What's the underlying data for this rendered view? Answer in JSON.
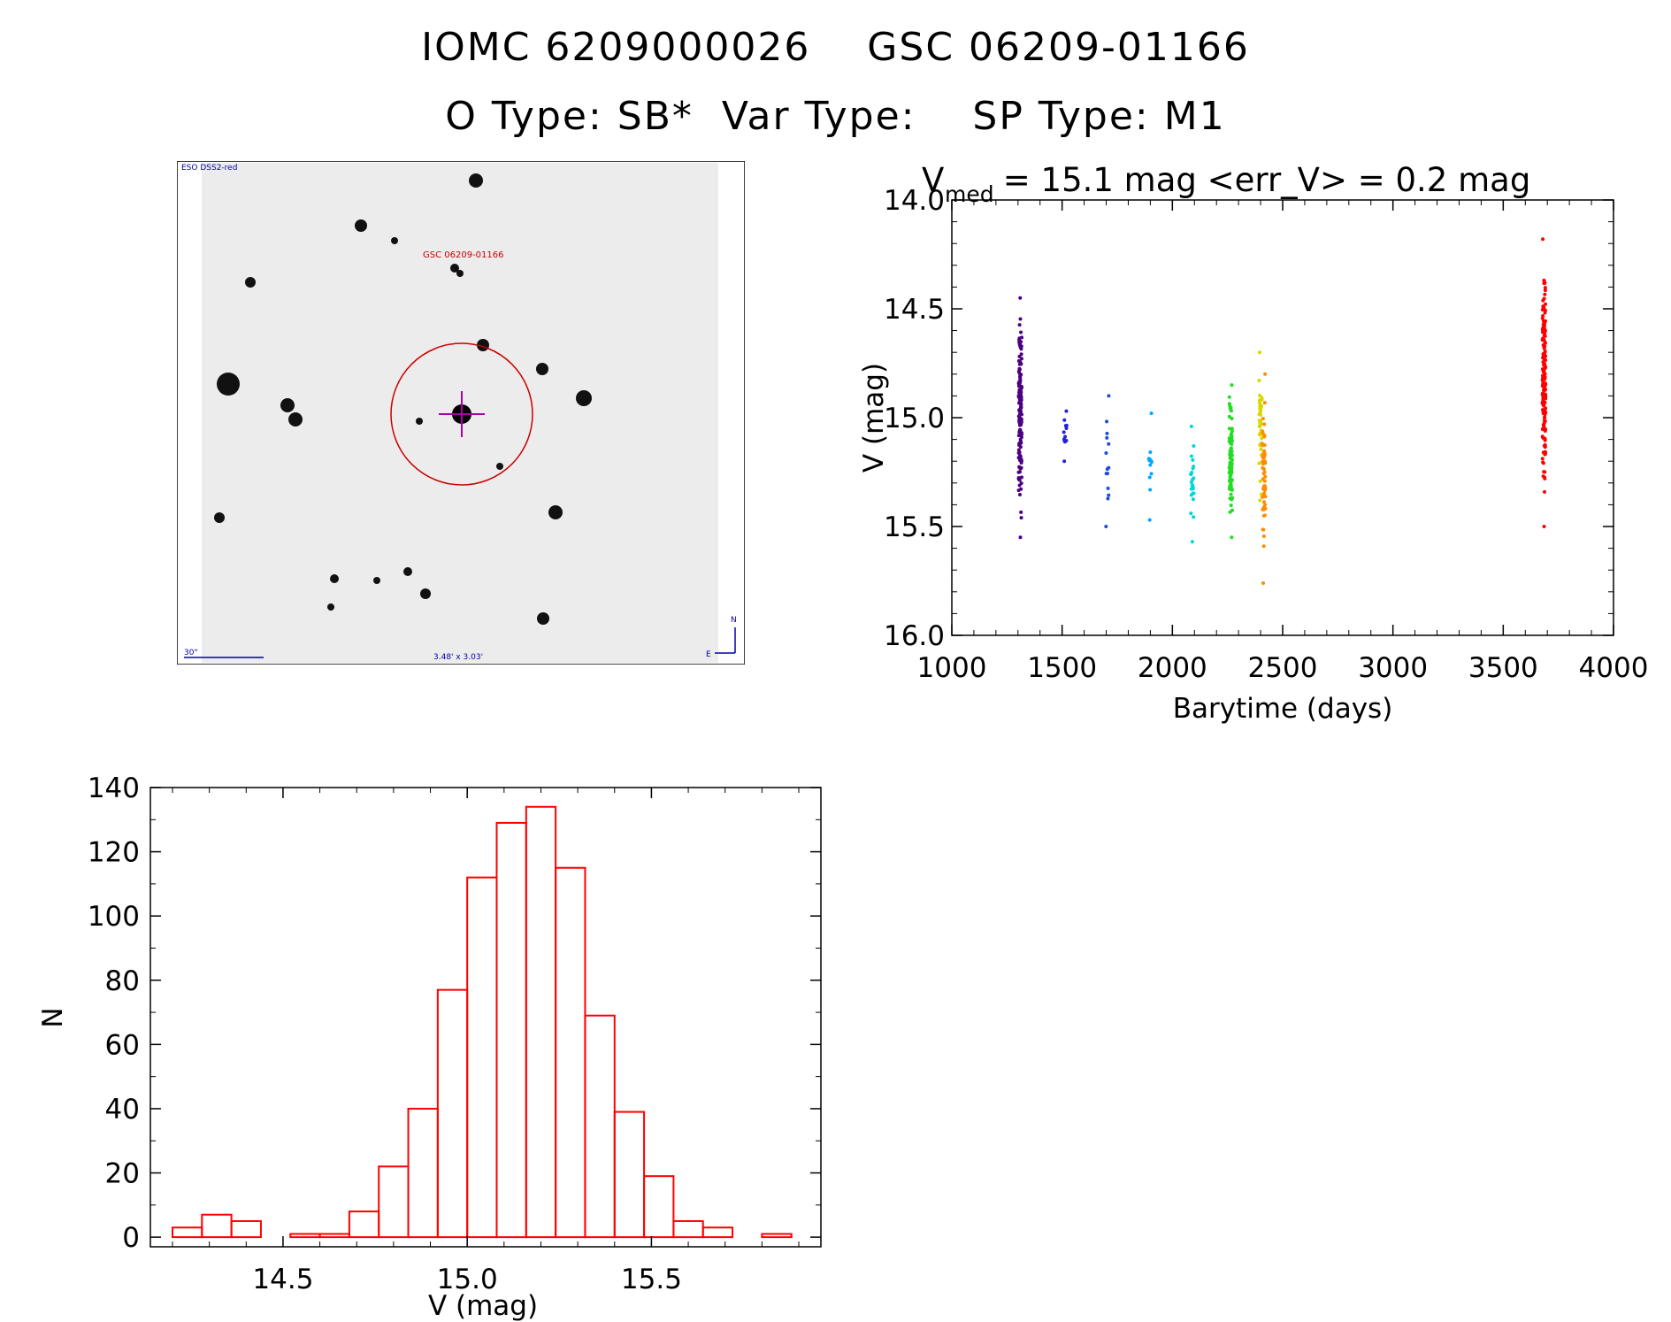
{
  "header": {
    "line1": "IOMC 6209000026    GSC 06209-01166",
    "line2": "O Type: SB*  Var Type:    SP Type: M1"
  },
  "finder": {
    "survey_label": "ESO DSS2-red",
    "target_label": "GSC 06209-01166",
    "scale_label": "30\"",
    "fov_label": "3.48' x 3.03'",
    "north_label": "N",
    "east_label": "E"
  },
  "chart_data": [
    {
      "type": "scatter",
      "title_prefix": "V",
      "title_subscript": "med",
      "title_rest": " = 15.1 mag <err_V> = 0.2 mag",
      "xlabel": "Barytime (days)",
      "ylabel": "V (mag)",
      "xlim": [
        1000,
        4000
      ],
      "ylim": [
        16.0,
        14.0
      ],
      "y_inverted": true,
      "xticks": [
        1000,
        1500,
        2000,
        2500,
        3000,
        3500,
        4000
      ],
      "xtick_labels": [
        "1000",
        "1500",
        "2000",
        "2500",
        "3000",
        "3500",
        "4000"
      ],
      "yticks": [
        14.0,
        14.5,
        15.0,
        15.5,
        16.0
      ],
      "ytick_labels": [
        "14.0",
        "14.5",
        "15.0",
        "15.5",
        "16.0"
      ],
      "groups": [
        {
          "x": 1310,
          "ymin": 14.45,
          "ymax": 15.55,
          "n": 150,
          "color": "#4b0082"
        },
        {
          "x": 1515,
          "ymin": 14.97,
          "ymax": 15.2,
          "n": 12,
          "color": "#2222dd"
        },
        {
          "x": 1705,
          "ymin": 14.9,
          "ymax": 15.5,
          "n": 14,
          "color": "#1f4ce0"
        },
        {
          "x": 1900,
          "ymin": 14.98,
          "ymax": 15.47,
          "n": 12,
          "color": "#00a8ff"
        },
        {
          "x": 2090,
          "ymin": 15.04,
          "ymax": 15.57,
          "n": 25,
          "color": "#00d8d8"
        },
        {
          "x": 2265,
          "ymin": 14.85,
          "ymax": 15.55,
          "n": 80,
          "color": "#22dd22"
        },
        {
          "x": 2400,
          "ymin": 14.7,
          "ymax": 15.38,
          "n": 45,
          "color": "#d8d800"
        },
        {
          "x": 2415,
          "ymin": 14.8,
          "ymax": 15.76,
          "n": 60,
          "color": "#ff8c00"
        },
        {
          "x": 3685,
          "ymin": 14.18,
          "ymax": 15.5,
          "n": 170,
          "color": "#ff0000"
        }
      ]
    },
    {
      "type": "bar",
      "subtype": "histogram",
      "xlabel": "V (mag)",
      "ylabel": "N",
      "xlim": [
        14.14,
        15.96
      ],
      "ylim": [
        -3,
        140
      ],
      "xticks": [
        14.5,
        15.0,
        15.5
      ],
      "xtick_labels": [
        "14.5",
        "15.0",
        "15.5"
      ],
      "yticks": [
        0,
        20,
        40,
        60,
        80,
        100,
        120,
        140
      ],
      "ytick_labels": [
        "0",
        "20",
        "40",
        "60",
        "80",
        "100",
        "120",
        "140"
      ],
      "bin_start": 14.2,
      "bin_width": 0.08,
      "counts": [
        3,
        7,
        5,
        0,
        1,
        1,
        8,
        22,
        40,
        77,
        112,
        129,
        134,
        115,
        69,
        39,
        19,
        5,
        3,
        0,
        1
      ],
      "color": "#ff0000"
    }
  ]
}
